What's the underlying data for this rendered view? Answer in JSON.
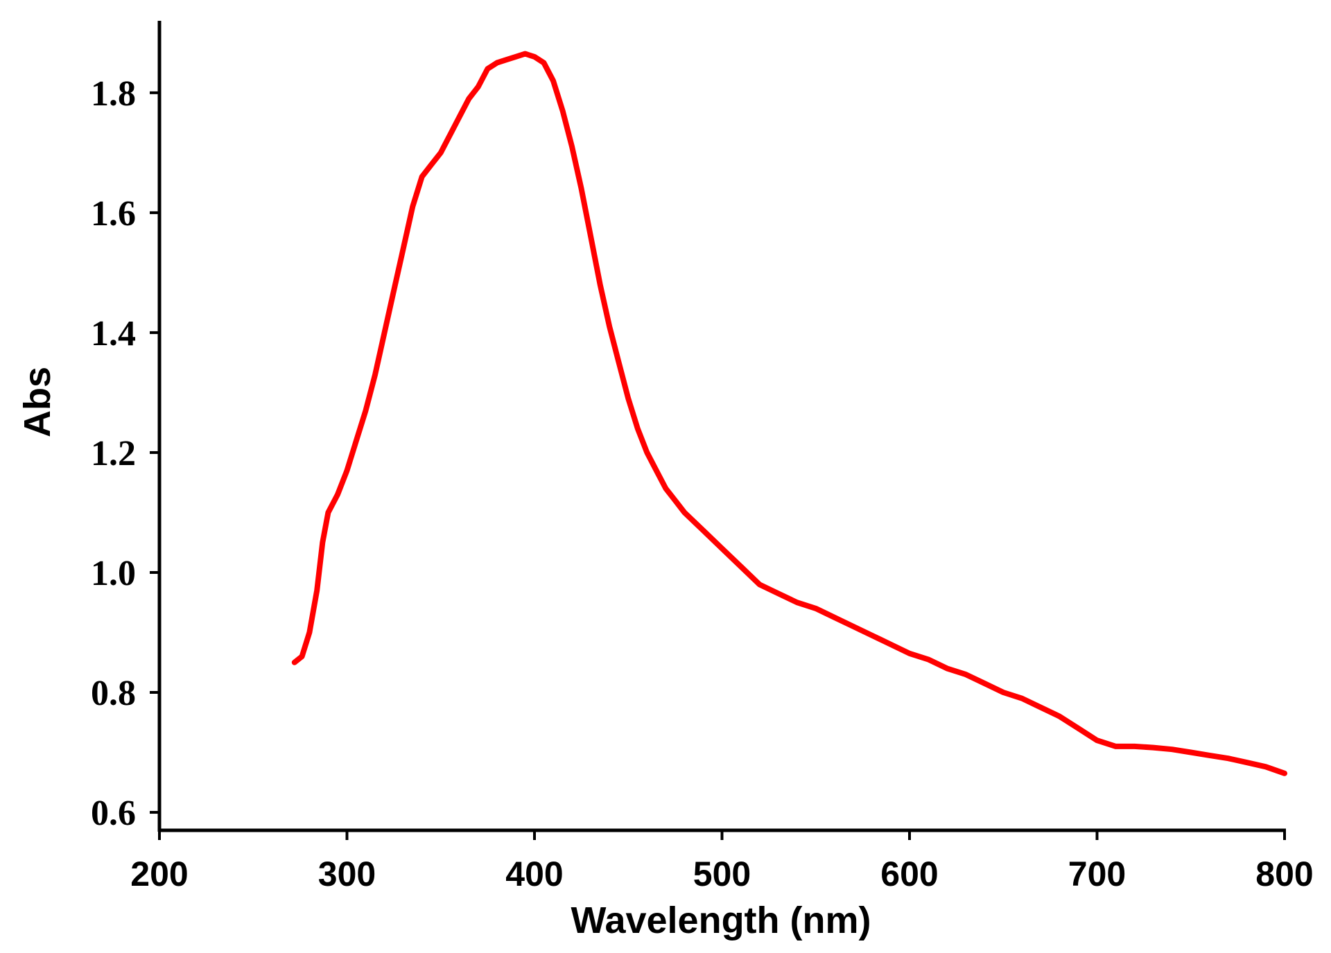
{
  "chart_data": {
    "type": "line",
    "xlabel": "Wavelength (nm)",
    "ylabel": "Abs",
    "xlim": [
      200,
      800
    ],
    "ylim": [
      0.57,
      1.92
    ],
    "xticks": [
      200,
      300,
      400,
      500,
      600,
      700,
      800
    ],
    "xtick_labels": [
      "200",
      "300",
      "400",
      "500",
      "600",
      "700",
      "800"
    ],
    "yticks": [
      0.6,
      0.8,
      1.0,
      1.2,
      1.4,
      1.6,
      1.8
    ],
    "ytick_labels": [
      "0.6",
      "0.8",
      "1.0",
      "1.2",
      "1.4",
      "1.6",
      "1.8"
    ],
    "grid": false,
    "line_color": "#ff0000",
    "series": [
      {
        "x": [
          272,
          276,
          280,
          284,
          287,
          290,
          295,
          300,
          305,
          310,
          315,
          320,
          325,
          330,
          335,
          340,
          345,
          350,
          355,
          360,
          365,
          370,
          375,
          380,
          385,
          390,
          395,
          400,
          405,
          410,
          415,
          420,
          425,
          430,
          435,
          440,
          445,
          450,
          455,
          460,
          465,
          470,
          475,
          480,
          490,
          500,
          510,
          520,
          530,
          540,
          550,
          560,
          570,
          580,
          590,
          600,
          610,
          620,
          630,
          640,
          650,
          660,
          670,
          680,
          690,
          700,
          710,
          720,
          730,
          740,
          750,
          760,
          770,
          780,
          790,
          800
        ],
        "y": [
          0.85,
          0.86,
          0.9,
          0.97,
          1.05,
          1.1,
          1.13,
          1.17,
          1.22,
          1.27,
          1.33,
          1.4,
          1.47,
          1.54,
          1.61,
          1.66,
          1.68,
          1.7,
          1.73,
          1.76,
          1.79,
          1.81,
          1.84,
          1.85,
          1.855,
          1.86,
          1.865,
          1.86,
          1.85,
          1.82,
          1.77,
          1.71,
          1.64,
          1.56,
          1.48,
          1.41,
          1.35,
          1.29,
          1.24,
          1.2,
          1.17,
          1.14,
          1.12,
          1.1,
          1.07,
          1.04,
          1.01,
          0.98,
          0.965,
          0.95,
          0.94,
          0.925,
          0.91,
          0.895,
          0.88,
          0.865,
          0.855,
          0.84,
          0.83,
          0.815,
          0.8,
          0.79,
          0.775,
          0.76,
          0.74,
          0.72,
          0.71,
          0.71,
          0.708,
          0.705,
          0.7,
          0.695,
          0.69,
          0.683,
          0.676,
          0.665
        ]
      }
    ]
  }
}
